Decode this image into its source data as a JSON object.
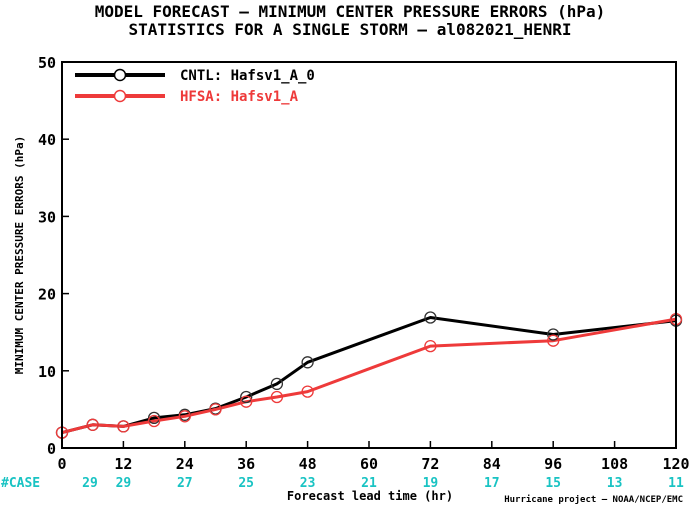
{
  "chart_data": {
    "type": "line",
    "title_line1": "MODEL FORECAST – MINIMUM CENTER PRESSURE ERRORS (hPa)",
    "title_line2": "STATISTICS FOR A SINGLE STORM – al082021_HENRI",
    "xlabel": "Forecast lead time (hr)",
    "ylabel": "MINIMUM CENTER PRESSURE ERRORS (hPa)",
    "credit": "Hurricane project – NOAA/NCEP/EMC",
    "xlim": [
      0,
      120
    ],
    "ylim": [
      0,
      50
    ],
    "xticks": [
      0,
      12,
      24,
      36,
      48,
      60,
      72,
      84,
      96,
      108,
      120
    ],
    "yticks": [
      0,
      10,
      20,
      30,
      40,
      50
    ],
    "legend_position": "top-left",
    "case_label": "#CASE",
    "case_color": "#19c3c3",
    "cases": [
      "29",
      "29",
      "27",
      "25",
      "23",
      "21",
      "19",
      "17",
      "15",
      "13",
      "11"
    ],
    "series": [
      {
        "name": "CNTL: Hafsv1_A_0",
        "color": "#000000",
        "x": [
          0,
          6,
          12,
          18,
          24,
          30,
          36,
          42,
          48,
          72,
          96,
          120
        ],
        "y": [
          2.0,
          3.0,
          2.8,
          3.9,
          4.3,
          5.1,
          6.6,
          8.3,
          11.1,
          16.9,
          14.7,
          16.5
        ]
      },
      {
        "name": "HFSA: Hafsv1_A",
        "color": "#ee3a3a",
        "x": [
          0,
          6,
          12,
          18,
          24,
          30,
          36,
          42,
          48,
          72,
          96,
          120
        ],
        "y": [
          2.0,
          3.0,
          2.8,
          3.5,
          4.1,
          5.0,
          6.0,
          6.6,
          7.3,
          13.2,
          13.9,
          16.7
        ]
      }
    ]
  }
}
